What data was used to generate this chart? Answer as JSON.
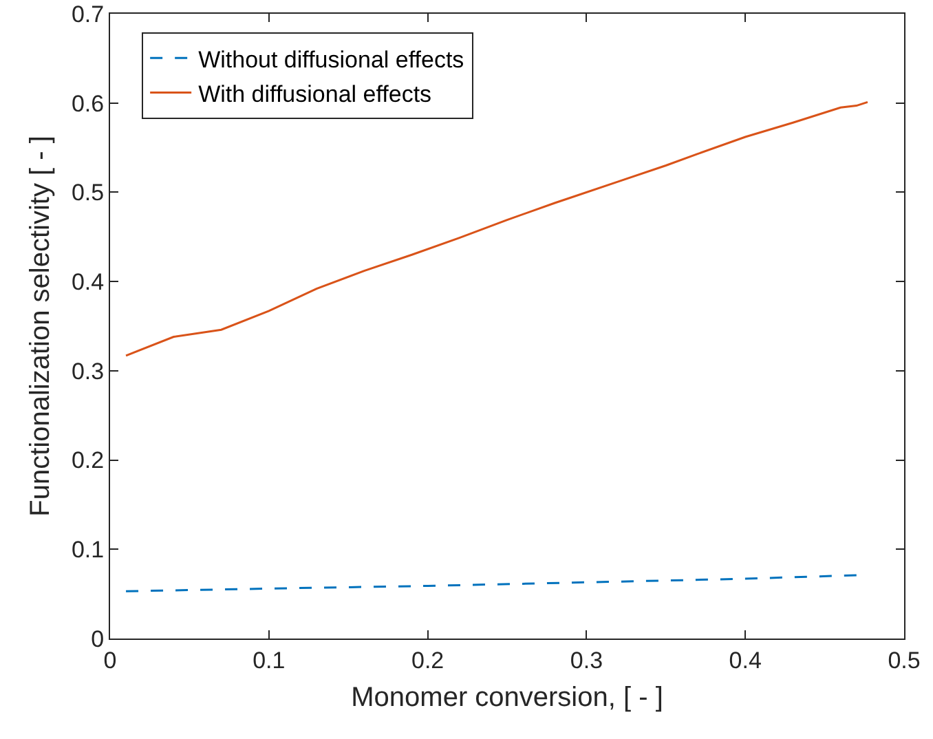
{
  "chart_data": {
    "type": "line",
    "xlabel": "Monomer conversion, [ - ]",
    "ylabel": "Functionalization selectivity [ - ]",
    "xlim": [
      0,
      0.5
    ],
    "xticks": [
      0,
      0.1,
      0.2,
      0.3,
      0.4,
      0.5
    ],
    "ylim": [
      0,
      0.7
    ],
    "yticks": [
      0,
      0.1,
      0.2,
      0.3,
      0.4,
      0.5,
      0.6,
      0.7
    ],
    "grid": false,
    "legend": "top left",
    "marker": "none",
    "series": [
      {
        "name": "Without diffusional effects",
        "color": "#0072bd",
        "line_style": "dashed",
        "x": [
          0.01,
          0.1,
          0.2,
          0.3,
          0.4,
          0.47
        ],
        "values": [
          0.053,
          0.056,
          0.059,
          0.063,
          0.067,
          0.071
        ]
      },
      {
        "name": "With diffusional effects",
        "color": "#d95319",
        "line_style": "solid",
        "x": [
          0.01,
          0.04,
          0.07,
          0.1,
          0.13,
          0.16,
          0.19,
          0.22,
          0.25,
          0.28,
          0.29,
          0.32,
          0.35,
          0.37,
          0.4,
          0.43,
          0.46,
          0.47,
          0.477
        ],
        "values": [
          0.317,
          0.338,
          0.346,
          0.367,
          0.392,
          0.412,
          0.43,
          0.449,
          0.469,
          0.488,
          0.494,
          0.512,
          0.53,
          0.543,
          0.562,
          0.578,
          0.595,
          0.597,
          0.601
        ]
      }
    ]
  }
}
